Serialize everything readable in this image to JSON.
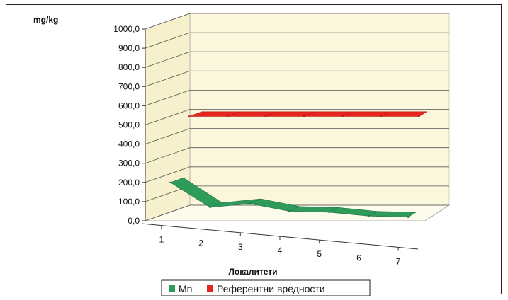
{
  "chart_data": {
    "type": "line",
    "variant": "3d-ribbon",
    "ylabel": "mg/kg",
    "xlabel": "Локалитети",
    "ylim": [
      0,
      1000
    ],
    "y_ticks": [
      "0,0",
      "100,0",
      "200,0",
      "300,0",
      "400,0",
      "500,0",
      "600,0",
      "700,0",
      "800,0",
      "900,0",
      "1000,0"
    ],
    "categories": [
      "1",
      "2",
      "3",
      "4",
      "5",
      "6",
      "7"
    ],
    "series": [
      {
        "name": "Mn",
        "values": [
          190,
          60,
          80,
          40,
          35,
          15,
          10
        ],
        "color": "#2e9b5a"
      },
      {
        "name": "Референтни вредности",
        "values": [
          500,
          500,
          500,
          500,
          500,
          500,
          500
        ],
        "color": "#e8241c"
      }
    ],
    "legend": "bottom",
    "grid": true
  }
}
